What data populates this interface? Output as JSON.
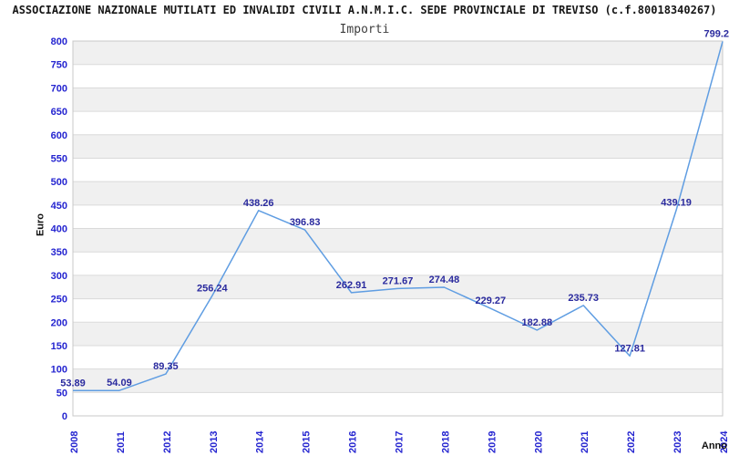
{
  "title": "ASSOCIAZIONE NAZIONALE MUTILATI ED INVALIDI CIVILI A.N.M.I.C. SEDE PROVINCIALE DI TREVISO (c.f.80018340267)",
  "chart_data": {
    "type": "line",
    "title": "Importi",
    "xlabel": "Anno",
    "ylabel": "Euro",
    "categories": [
      "2008",
      "2011",
      "2012",
      "2013",
      "2014",
      "2015",
      "2016",
      "2017",
      "2018",
      "2019",
      "2020",
      "2021",
      "2022",
      "2023",
      "2024"
    ],
    "values": [
      53.89,
      54.09,
      89.35,
      256.24,
      438.26,
      396.83,
      262.91,
      271.67,
      274.48,
      229.27,
      182.88,
      235.73,
      127.81,
      439.19,
      799.2
    ],
    "ylim": [
      0,
      800
    ],
    "ytick_step": 50,
    "legend": "none",
    "grid": "alternating-horizontal-bands",
    "colors": {
      "line": "#5f9de2",
      "data_label": "#2a2a9e",
      "tick_label": "#2424d0",
      "band": "#f0f0f0",
      "band_alt": "#ffffff",
      "grid_line": "#dadada",
      "plot_border": "#c8c8c8"
    }
  }
}
